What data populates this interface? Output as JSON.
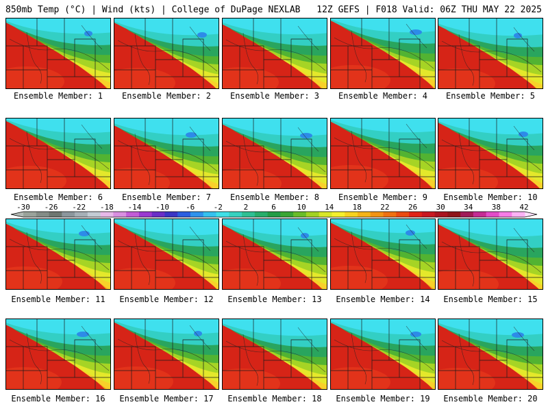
{
  "header": {
    "left": "850mb Temp (°C) | Wind (kts) | College of DuPage NEXLAB",
    "right": "12Z GEFS | F018 Valid: 06Z THU MAY 22 2025"
  },
  "panels": [
    {
      "label": "Ensemble Member: 1"
    },
    {
      "label": "Ensemble Member: 2"
    },
    {
      "label": "Ensemble Member: 3"
    },
    {
      "label": "Ensemble Member: 4"
    },
    {
      "label": "Ensemble Member: 5"
    },
    {
      "label": "Ensemble Member: 6"
    },
    {
      "label": "Ensemble Member: 7"
    },
    {
      "label": "Ensemble Member: 8"
    },
    {
      "label": "Ensemble Member: 9"
    },
    {
      "label": "Ensemble Member: 10"
    },
    {
      "label": "Ensemble Member: 11"
    },
    {
      "label": "Ensemble Member: 12"
    },
    {
      "label": "Ensemble Member: 13"
    },
    {
      "label": "Ensemble Member: 14"
    },
    {
      "label": "Ensemble Member: 15"
    },
    {
      "label": "Ensemble Member: 16"
    },
    {
      "label": "Ensemble Member: 17"
    },
    {
      "label": "Ensemble Member: 18"
    },
    {
      "label": "Ensemble Member: 19"
    },
    {
      "label": "Ensemble Member: 20"
    }
  ],
  "colorbar": {
    "ticks": [
      "-30",
      "-26",
      "-22",
      "-18",
      "-14",
      "-10",
      "-6",
      "-2",
      "2",
      "6",
      "10",
      "14",
      "18",
      "22",
      "26",
      "30",
      "34",
      "38",
      "42"
    ],
    "colors": [
      "#9aa29a",
      "#848c86",
      "#6e7670",
      "#8c969c",
      "#a6afb6",
      "#c3cbd3",
      "#e6b8e8",
      "#d98fe0",
      "#c25cd6",
      "#9a39d0",
      "#6a2ec7",
      "#3a35c4",
      "#2b5ee0",
      "#2f92ec",
      "#35c1ee",
      "#3fdfe6",
      "#37d1bf",
      "#2fbf93",
      "#27ad6a",
      "#229c46",
      "#3aa533",
      "#69bc28",
      "#a2d223",
      "#d8e628",
      "#f5ef2c",
      "#f7d21f",
      "#f5b317",
      "#f29313",
      "#ef7011",
      "#ea4b12",
      "#e02218",
      "#c81820",
      "#a9131f",
      "#8e1418",
      "#a01c58",
      "#c42c94",
      "#e24cc8",
      "#f77ce6",
      "#fbb2f4"
    ]
  }
}
